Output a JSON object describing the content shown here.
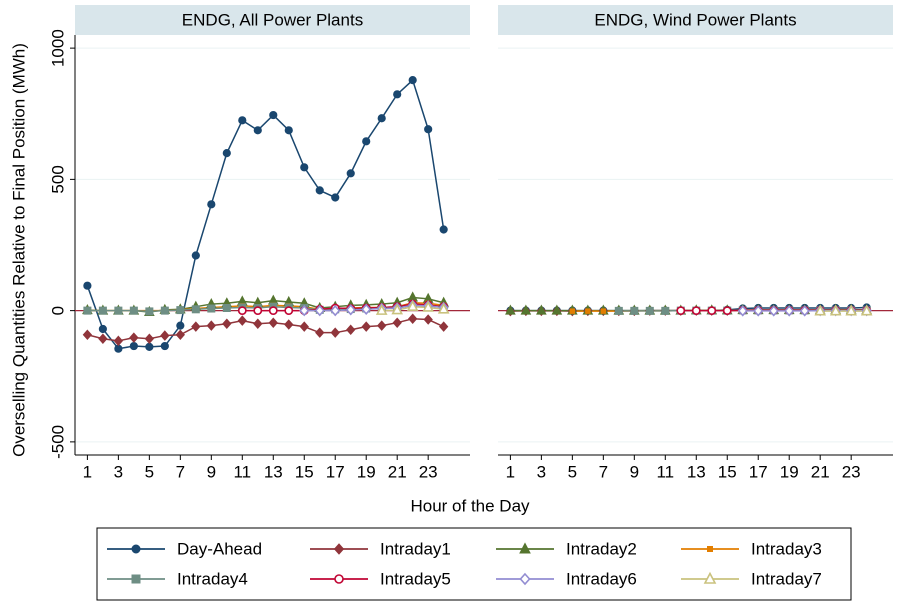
{
  "chart_data": {
    "type": "line",
    "y_label": "Overselling Quantities Relative to Final Position (MWh)",
    "x_label": "Hour of the Day",
    "x": [
      1,
      2,
      3,
      4,
      5,
      6,
      7,
      8,
      9,
      10,
      11,
      12,
      13,
      14,
      15,
      16,
      17,
      18,
      19,
      20,
      21,
      22,
      23,
      24
    ],
    "xlim": [
      0.2,
      25.7
    ],
    "xticks": [
      1,
      3,
      5,
      7,
      9,
      11,
      13,
      15,
      17,
      19,
      21,
      23
    ],
    "ylim": [
      -550,
      1050
    ],
    "yticks": [
      -500,
      0,
      500,
      1000
    ],
    "yline": 0,
    "yline_color": "#a2273a",
    "grid": true,
    "series": [
      {
        "name": "Day-Ahead",
        "color": "#1a476f",
        "marker": "circle",
        "hollow": false
      },
      {
        "name": "Intraday1",
        "color": "#90353b",
        "marker": "diamond",
        "hollow": false
      },
      {
        "name": "Intraday2",
        "color": "#55752f",
        "marker": "triangle",
        "hollow": false
      },
      {
        "name": "Intraday3",
        "color": "#e37e00",
        "marker": "smallsquare",
        "hollow": false
      },
      {
        "name": "Intraday4",
        "color": "#6e8e84",
        "marker": "square",
        "hollow": false
      },
      {
        "name": "Intraday5",
        "color": "#c10534",
        "marker": "circle",
        "hollow": true
      },
      {
        "name": "Intraday6",
        "color": "#938dd2",
        "marker": "diamond",
        "hollow": true
      },
      {
        "name": "Intraday7",
        "color": "#cac27e",
        "marker": "triangle",
        "hollow": true
      }
    ],
    "panels": [
      {
        "title": "ENDG, All Power Plants",
        "values": [
          [
            95,
            -70,
            -145,
            -135,
            -138,
            -135,
            -57,
            210,
            405,
            600,
            725,
            687,
            745,
            687,
            546,
            458,
            431,
            523,
            645,
            733,
            824,
            878,
            691,
            309
          ],
          [
            -92,
            -107,
            -115,
            -103,
            -107,
            -95,
            -92,
            -61,
            -57,
            -50,
            -38,
            -50,
            -46,
            -53,
            -61,
            -84,
            -84,
            -73,
            -61,
            -57,
            -46,
            -31,
            -34,
            -61
          ],
          [
            2,
            0,
            0,
            0,
            -5,
            3,
            5,
            15,
            25,
            28,
            35,
            30,
            38,
            33,
            28,
            10,
            15,
            20,
            22,
            25,
            30,
            50,
            45,
            30
          ],
          [
            0,
            0,
            0,
            0,
            0,
            0,
            3,
            8,
            12,
            15,
            18,
            15,
            20,
            18,
            15,
            5,
            8,
            10,
            12,
            12,
            15,
            30,
            28,
            20
          ],
          [
            0,
            0,
            0,
            0,
            -3,
            0,
            2,
            5,
            8,
            10,
            12,
            10,
            15,
            12,
            10,
            3,
            5,
            6,
            8,
            8,
            10,
            20,
            18,
            12
          ],
          [
            null,
            null,
            null,
            null,
            null,
            null,
            null,
            null,
            null,
            null,
            0,
            0,
            0,
            0,
            0,
            5,
            10,
            8,
            10,
            12,
            15,
            25,
            22,
            15
          ],
          [
            null,
            null,
            null,
            null,
            null,
            null,
            null,
            null,
            null,
            null,
            null,
            null,
            null,
            null,
            0,
            0,
            0,
            3,
            5,
            8,
            10,
            20,
            18,
            12
          ],
          [
            null,
            null,
            null,
            null,
            null,
            null,
            null,
            null,
            null,
            null,
            null,
            null,
            null,
            null,
            null,
            null,
            null,
            null,
            null,
            0,
            2,
            15,
            12,
            5
          ]
        ]
      },
      {
        "title": "ENDG, Wind Power Plants",
        "values": [
          [
            0,
            0,
            0,
            0,
            0,
            0,
            0,
            0,
            0,
            0,
            0,
            0,
            0,
            0,
            3,
            8,
            10,
            10,
            10,
            10,
            10,
            10,
            10,
            12
          ],
          [
            -2,
            -1,
            -1,
            -1,
            -2,
            -1,
            -1,
            -1,
            -1,
            0,
            0,
            0,
            0,
            0,
            0,
            2,
            3,
            3,
            3,
            3,
            3,
            4,
            4,
            3
          ],
          [
            0,
            0,
            0,
            0,
            0,
            0,
            0,
            0,
            0,
            0,
            0,
            0,
            1,
            1,
            1,
            2,
            2,
            2,
            2,
            2,
            2,
            3,
            3,
            2
          ],
          [
            null,
            null,
            null,
            null,
            -2,
            -2,
            -2,
            -2,
            -1,
            -1,
            -1,
            0,
            0,
            0,
            0,
            1,
            1,
            1,
            1,
            1,
            1,
            2,
            2,
            1
          ],
          [
            null,
            null,
            null,
            null,
            null,
            null,
            null,
            -1,
            -1,
            -1,
            -1,
            0,
            0,
            0,
            0,
            1,
            1,
            1,
            1,
            1,
            1,
            1,
            1,
            1
          ],
          [
            null,
            null,
            null,
            null,
            null,
            null,
            null,
            null,
            null,
            null,
            null,
            0,
            0,
            0,
            0,
            1,
            1,
            1,
            1,
            1,
            1,
            1,
            1,
            1
          ],
          [
            null,
            null,
            null,
            null,
            null,
            null,
            null,
            null,
            null,
            null,
            null,
            null,
            null,
            null,
            null,
            -1,
            -1,
            -1,
            -1,
            -1,
            0,
            0,
            0,
            0
          ],
          [
            null,
            null,
            null,
            null,
            null,
            null,
            null,
            null,
            null,
            null,
            null,
            null,
            null,
            null,
            null,
            null,
            null,
            null,
            null,
            null,
            -2,
            -2,
            -2,
            -2
          ]
        ]
      }
    ]
  }
}
